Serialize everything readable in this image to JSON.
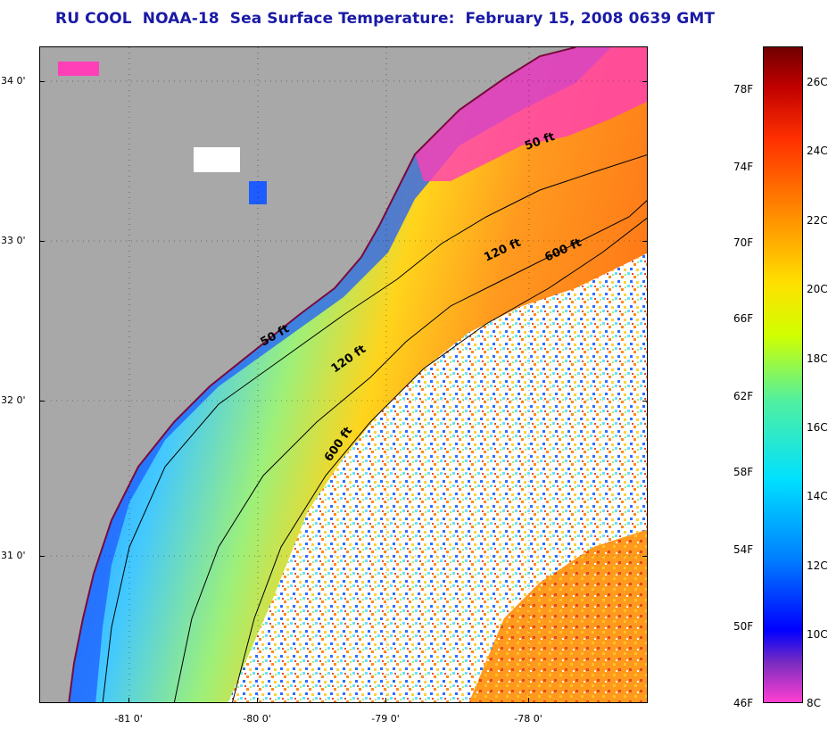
{
  "title": "RU COOL  NOAA-18  Sea Surface Temperature:  February 15, 2008 0639 GMT",
  "map": {
    "lat_labels": [
      "34 0'",
      "33 0'",
      "32 0'",
      "31 0'"
    ],
    "lon_labels": [
      "-81 0'",
      "-80 0'",
      "-79 0'",
      "-78 0'"
    ],
    "contour_labels": [
      "50 ft",
      "120 ft",
      "600 ft",
      "50 ft",
      "120 ft",
      "600 ft"
    ],
    "colors": {
      "land": "#a8a8a8",
      "cloud": "#ffffff",
      "nearshore": "#1f5cff",
      "shelf": "#43c8ff",
      "midshelf": "#9cf07a",
      "gulfstream": "#ff9a1f",
      "warm": "#e8461d",
      "cold": "#ff3fb7"
    }
  },
  "colorbar": {
    "fahrenheit_labels": [
      "78F",
      "74F",
      "70F",
      "66F",
      "62F",
      "58F",
      "54F",
      "50F",
      "46F"
    ],
    "celsius_labels": [
      "26C",
      "24C",
      "22C",
      "20C",
      "18C",
      "16C",
      "14C",
      "12C",
      "10C",
      "8C"
    ],
    "range_c": [
      8,
      27
    ],
    "colors": [
      "#ff3fd1",
      "#7a2cc0",
      "#0000ff",
      "#0080ff",
      "#00e0ff",
      "#50f0a0",
      "#d0ff00",
      "#ffe000",
      "#ff9000",
      "#ff3000",
      "#c00000",
      "#700000"
    ]
  }
}
